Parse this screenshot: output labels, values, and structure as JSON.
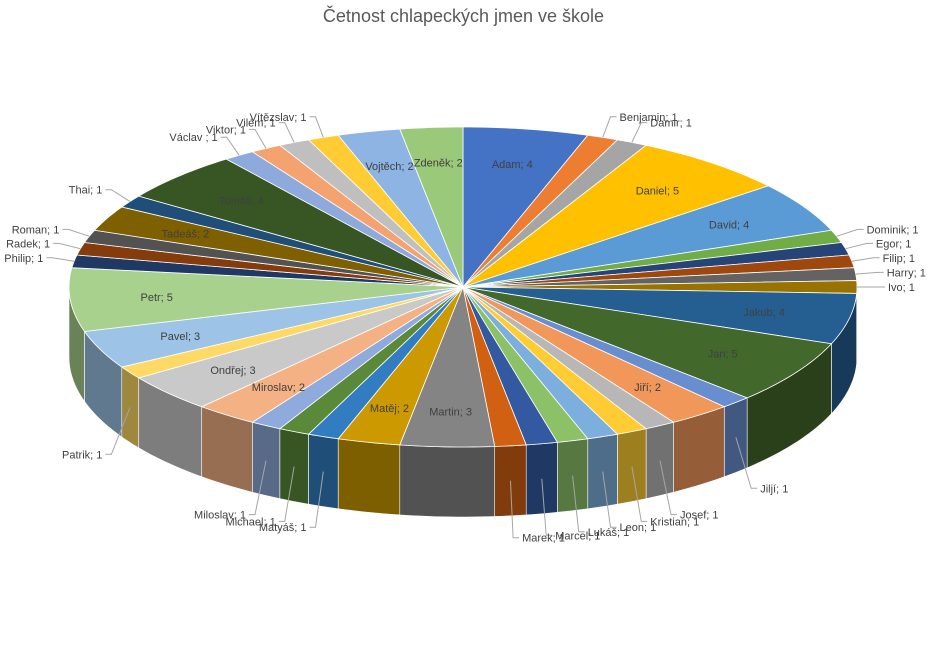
{
  "chart_data": {
    "type": "pie",
    "title": "Četnost chlapeckých jmen ve škole",
    "slices": [
      {
        "label": "Adam",
        "value": 4,
        "color": "#4472C4"
      },
      {
        "label": "Benjamin",
        "value": 1,
        "color": "#ED7D31"
      },
      {
        "label": "Damir",
        "value": 1,
        "color": "#A5A5A5"
      },
      {
        "label": "Daniel",
        "value": 5,
        "color": "#FFC000"
      },
      {
        "label": "David",
        "value": 4,
        "color": "#5B9BD5"
      },
      {
        "label": "Dominik",
        "value": 1,
        "color": "#70AD47"
      },
      {
        "label": "Egor",
        "value": 1,
        "color": "#264478"
      },
      {
        "label": "Filip",
        "value": 1,
        "color": "#9E480E"
      },
      {
        "label": "Harry",
        "value": 1,
        "color": "#636363"
      },
      {
        "label": "Ivo",
        "value": 1,
        "color": "#997300"
      },
      {
        "label": "Jakub",
        "value": 4,
        "color": "#255E91"
      },
      {
        "label": "Jan",
        "value": 5,
        "color": "#43682B"
      },
      {
        "label": "Jiljí",
        "value": 1,
        "color": "#698ED0"
      },
      {
        "label": "Jiří",
        "value": 2,
        "color": "#F1975A"
      },
      {
        "label": "Josef",
        "value": 1,
        "color": "#B7B7B7"
      },
      {
        "label": "Kristian",
        "value": 1,
        "color": "#FFCD33"
      },
      {
        "label": "Leon",
        "value": 1,
        "color": "#7CAFDD"
      },
      {
        "label": "Lukáš",
        "value": 1,
        "color": "#8CC168"
      },
      {
        "label": "Marcel",
        "value": 1,
        "color": "#335AA1"
      },
      {
        "label": "Marek",
        "value": 1,
        "color": "#D26012"
      },
      {
        "label": "Martin",
        "value": 3,
        "color": "#848484"
      },
      {
        "label": "Matěj",
        "value": 2,
        "color": "#CC9A00"
      },
      {
        "label": "Matyáš",
        "value": 1,
        "color": "#327DC2"
      },
      {
        "label": "Michael",
        "value": 1,
        "color": "#5A8A39"
      },
      {
        "label": "Miloslav",
        "value": 1,
        "color": "#8FAADC"
      },
      {
        "label": "Miroslav",
        "value": 2,
        "color": "#F4B183"
      },
      {
        "label": "Ondřej",
        "value": 3,
        "color": "#C9C9C9"
      },
      {
        "label": "Patrik",
        "value": 1,
        "color": "#FFD966"
      },
      {
        "label": "Pavel",
        "value": 3,
        "color": "#9DC3E6"
      },
      {
        "label": "Petr",
        "value": 5,
        "color": "#A9D18E"
      },
      {
        "label": "Philip",
        "value": 1,
        "color": "#203864"
      },
      {
        "label": "Radek",
        "value": 1,
        "color": "#843C0C"
      },
      {
        "label": "Roman",
        "value": 1,
        "color": "#525252"
      },
      {
        "label": "Tadeáš",
        "value": 2,
        "color": "#7F6000"
      },
      {
        "label": "Thai",
        "value": 1,
        "color": "#1F4E79"
      },
      {
        "label": "Tomáš",
        "value": 4,
        "color": "#375623"
      },
      {
        "label": "Václav ",
        "value": 1,
        "color": "#8EA9DB"
      },
      {
        "label": "Viktor",
        "value": 1,
        "color": "#F4A26F"
      },
      {
        "label": "Vilém",
        "value": 1,
        "color": "#BFBFBF"
      },
      {
        "label": "Vítězslav",
        "value": 1,
        "color": "#FFCC33"
      },
      {
        "label": "Vojtěch",
        "value": 2,
        "color": "#8DB4E2"
      },
      {
        "label": "Zdeněk",
        "value": 2,
        "color": "#9BC97A"
      }
    ],
    "data_label_format": "{label}; {value}",
    "legend": "none"
  }
}
